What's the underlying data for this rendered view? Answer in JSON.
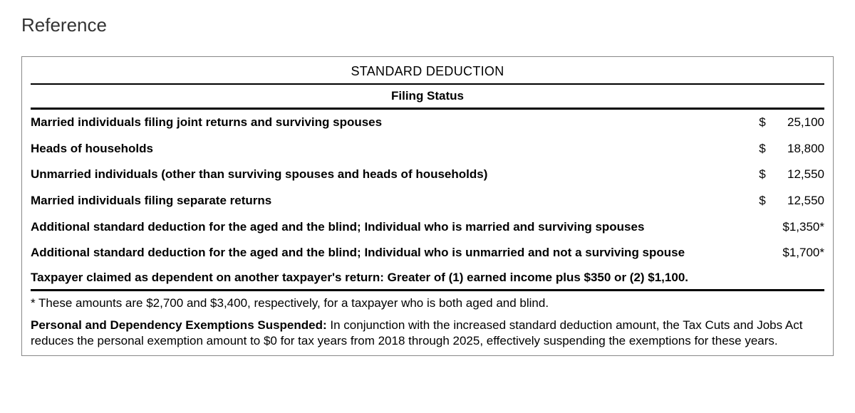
{
  "page": {
    "title": "Reference"
  },
  "table": {
    "header1": "STANDARD DEDUCTION",
    "header2": "Filing Status",
    "rows": [
      {
        "label": "Married individuals filing joint returns and surviving spouses",
        "currency": "$",
        "amount": "25,100",
        "has_currency": true
      },
      {
        "label": "Heads of households",
        "currency": "$",
        "amount": "18,800",
        "has_currency": true
      },
      {
        "label": "Unmarried individuals (other than surviving spouses and heads of households)",
        "currency": "$",
        "amount": "12,550",
        "has_currency": true
      },
      {
        "label": "Married individuals filing separate returns",
        "currency": "$",
        "amount": "12,550",
        "has_currency": true
      },
      {
        "label": "Additional standard deduction for the aged and the blind; Individual who is married and surviving spouses",
        "currency": "",
        "amount": "$1,350*",
        "has_currency": false
      },
      {
        "label": "Additional standard deduction for the aged and the blind; Individual who is unmarried and not a surviving spouse",
        "currency": "",
        "amount": "$1,700*",
        "has_currency": false
      }
    ],
    "dependent_note": "Taxpayer claimed as dependent on another taxpayer's return: Greater of (1) earned income plus $350 or (2) $1,100.",
    "footnote": "* These amounts are $2,700 and $3,400, respectively, for a taxpayer who is both aged and blind.",
    "exemptions_lead": "Personal and Dependency Exemptions Suspended:",
    "exemptions_body": "  In conjunction with the increased standard deduction amount, the Tax Cuts and Jobs Act reduces the personal exemption amount to $0 for tax years from 2018 through 2025, effectively suspending the exemptions for these years."
  },
  "colors": {
    "text": "#000000",
    "border": "#888888",
    "rule": "#000000",
    "background": "#ffffff"
  },
  "typography": {
    "title_fontsize": 26,
    "body_fontsize": 17,
    "header1_fontsize": 18
  }
}
